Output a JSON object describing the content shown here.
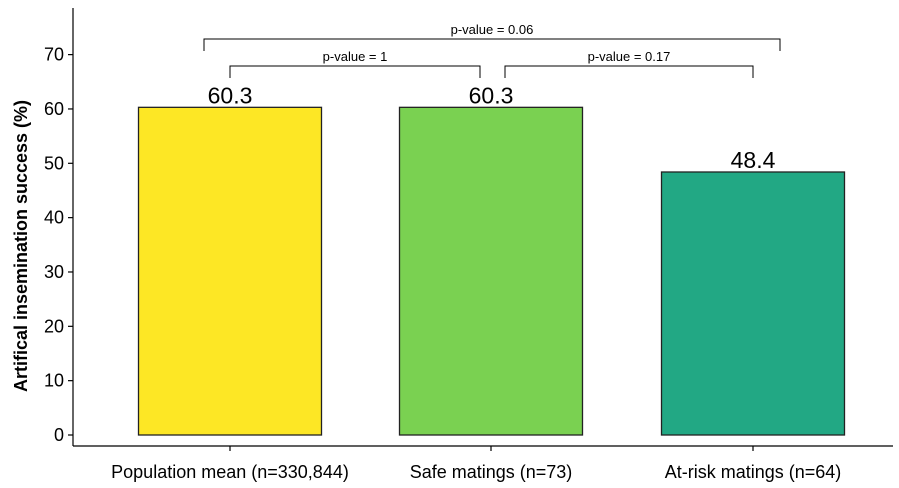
{
  "chart_data": {
    "type": "bar",
    "categories": [
      "Population mean (n=330,844)",
      "Safe matings (n=73)",
      "At-risk matings (n=64)"
    ],
    "values": [
      60.3,
      60.3,
      48.4
    ],
    "value_labels": [
      "60.3",
      "60.3",
      "48.4"
    ],
    "colors": [
      "#FDE725",
      "#7AD151",
      "#22A884"
    ],
    "title": "",
    "xlabel": "",
    "ylabel": "Artifical insemination success (%)",
    "ylim": [
      0,
      75
    ],
    "yticks": [
      0,
      10,
      20,
      30,
      40,
      50,
      60,
      70
    ],
    "grid": false,
    "legend": "none",
    "comparisons": [
      {
        "from": 0,
        "to": 1,
        "label": "p-value = 1",
        "tier": 1
      },
      {
        "from": 1,
        "to": 2,
        "label": "p-value = 0.17",
        "tier": 1
      },
      {
        "from": 0,
        "to": 2,
        "label": "p-value = 0.06",
        "tier": 2
      }
    ]
  }
}
